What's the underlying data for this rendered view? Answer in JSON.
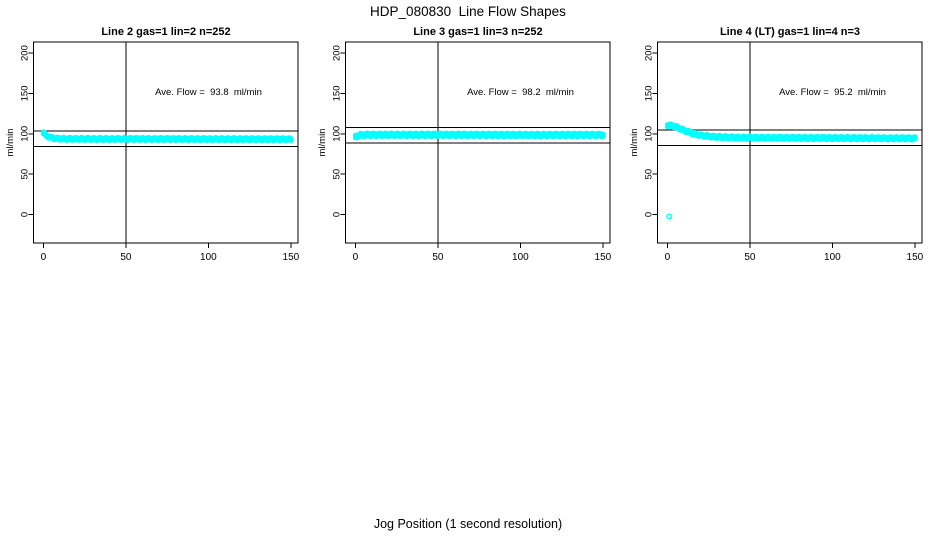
{
  "chart": {
    "title": "HDP_080830  Line Flow Shapes",
    "xlabel": "Jog Position (1 second resolution)"
  },
  "chart_data": {
    "type": "scatter",
    "title": "HDP_080830  Line Flow Shapes",
    "xlabel": "Jog Position (1 second resolution)",
    "ylabel": "ml/min",
    "xlim": [
      -6,
      154.3
    ],
    "ylim": [
      -35.3,
      213.7
    ],
    "xticks": [
      0,
      50,
      100,
      150
    ],
    "yticks": [
      0,
      50,
      100,
      150,
      200
    ],
    "grid": false,
    "marker": "open-circle",
    "marker_color": "#00FFFF",
    "axis_color": "#000000",
    "panels": [
      {
        "title": "Line 2 gas=1 lin=2 n=252",
        "annotation": "Ave. Flow =  93.8  ml/min",
        "ave_flow_ml_min": 93.8,
        "n": 252,
        "hlines": [
          103.2,
          84.4
        ],
        "vline_x": 50,
        "annotation_pos": [
          100,
          150
        ],
        "band_half_width": 1.3,
        "band_anchors": [
          [
            0,
            101
          ],
          [
            1,
            99
          ],
          [
            2,
            97.5
          ],
          [
            3,
            96.5
          ],
          [
            4,
            95.6
          ],
          [
            5,
            95
          ],
          [
            6,
            94.5
          ],
          [
            8,
            94
          ],
          [
            10,
            93.8
          ],
          [
            15,
            93.6
          ],
          [
            30,
            93.5
          ],
          [
            50,
            93.5
          ],
          [
            100,
            93.4
          ],
          [
            150,
            93.2
          ]
        ],
        "x_range": [
          0,
          150
        ],
        "outliers": []
      },
      {
        "title": "Line 3 gas=1 lin=3 n=252",
        "annotation": "Ave. Flow =  98.2  ml/min",
        "ave_flow_ml_min": 98.2,
        "n": 252,
        "hlines": [
          108.0,
          88.4
        ],
        "vline_x": 50,
        "annotation_pos": [
          100,
          150
        ],
        "band_half_width": 1.6,
        "band_anchors": [
          [
            0,
            96
          ],
          [
            1,
            97
          ],
          [
            2,
            97.8
          ],
          [
            3,
            98.3
          ],
          [
            5,
            98.6
          ],
          [
            10,
            98.7
          ],
          [
            50,
            98.7
          ],
          [
            100,
            98.5
          ],
          [
            150,
            98.5
          ]
        ],
        "x_range": [
          0,
          150
        ],
        "outliers": []
      },
      {
        "title": "Line 4 (LT) gas=1 lin=4 n=3",
        "annotation": "Ave. Flow =  95.2  ml/min",
        "ave_flow_ml_min": 95.2,
        "n": 3,
        "hlines": [
          104.7,
          85.7
        ],
        "vline_x": 50,
        "annotation_pos": [
          100,
          150
        ],
        "band_half_width": 1.4,
        "band_anchors": [
          [
            0,
            110.5
          ],
          [
            2,
            110.2
          ],
          [
            4,
            109.3
          ],
          [
            6,
            107.8
          ],
          [
            8,
            106
          ],
          [
            10,
            104.3
          ],
          [
            12,
            102.7
          ],
          [
            14,
            101.2
          ],
          [
            16,
            100
          ],
          [
            18,
            99
          ],
          [
            20,
            98.2
          ],
          [
            22,
            97.5
          ],
          [
            25,
            96.8
          ],
          [
            28,
            96.3
          ],
          [
            32,
            95.9
          ],
          [
            36,
            95.6
          ],
          [
            40,
            95.4
          ],
          [
            50,
            95.1
          ],
          [
            70,
            94.9
          ],
          [
            100,
            94.7
          ],
          [
            125,
            94.5
          ],
          [
            150,
            94.3
          ]
        ],
        "x_range": [
          0,
          150
        ],
        "outliers": [
          [
            1,
            -2.3
          ]
        ]
      }
    ]
  }
}
